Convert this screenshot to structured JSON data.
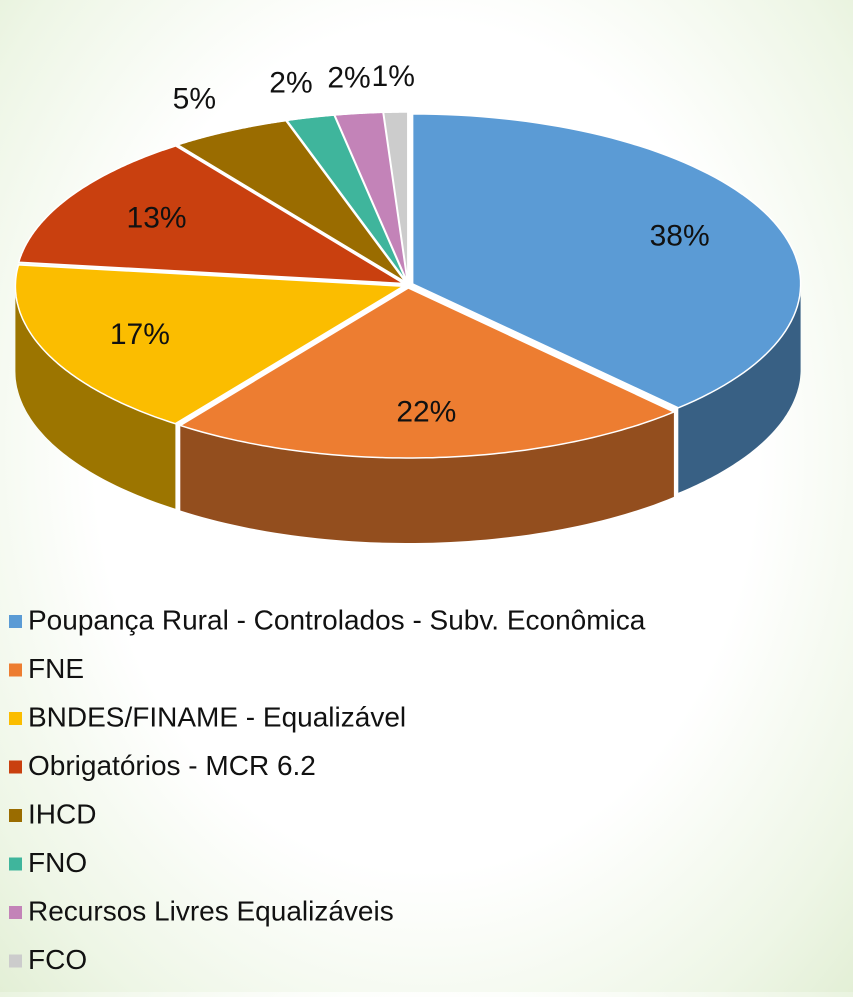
{
  "chart_data": {
    "type": "pie",
    "categories": [
      "Poupança Rural - Controlados - Subv. Econômica",
      "FNE",
      "BNDES/FINAME - Equalizável",
      "Obrigatórios - MCR 6.2",
      "IHCD",
      "FNO",
      "Recursos Livres Equalizáveis",
      "FCO"
    ],
    "values": [
      38,
      22,
      17,
      13,
      5,
      2,
      2,
      1
    ],
    "value_labels": [
      "38%",
      "22%",
      "17%",
      "13%",
      "5%",
      "2%",
      "2%",
      "1%"
    ],
    "colors": [
      "#5b9bd5",
      "#ed7d31",
      "#fbbd00",
      "#c9400f",
      "#9a6c00",
      "#3fb59c",
      "#c383b8",
      "#cccccc"
    ],
    "legend": "bottom"
  }
}
